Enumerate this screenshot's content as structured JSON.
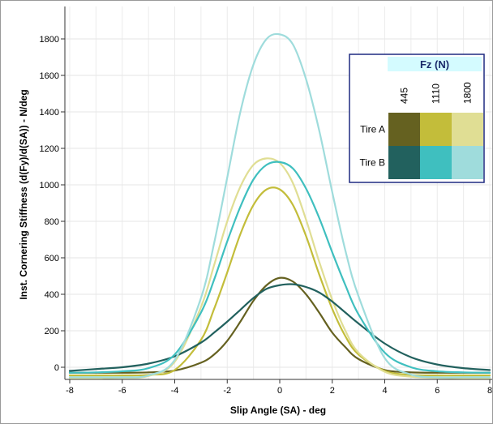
{
  "chart_data": {
    "type": "line",
    "xlabel": "Slip Angle (SA) - deg",
    "ylabel": "Inst. Cornering Stiffness (d(Fy)/d(SA)) - N/deg",
    "xlim": [
      -8,
      8
    ],
    "ylim": [
      -70,
      1880
    ],
    "x_ticks": [
      -8,
      -6,
      -4,
      -2,
      0,
      2,
      4,
      6,
      8
    ],
    "y_ticks": [
      0,
      200,
      400,
      600,
      800,
      1000,
      1200,
      1400,
      1600,
      1800
    ],
    "grid": true,
    "x_samples": [
      -8,
      -7,
      -6,
      -5,
      -4,
      -3,
      -2.5,
      -2,
      -1.5,
      -1,
      -0.5,
      0,
      0.5,
      1,
      1.5,
      2,
      2.5,
      3,
      4,
      5,
      6,
      7,
      8
    ],
    "series": [
      {
        "name": "Tire A 445",
        "color": "#656120",
        "x": [
          -8,
          -7,
          -6,
          -5,
          -4,
          -3,
          -2.5,
          -2,
          -1.5,
          -1,
          -0.5,
          0,
          0.5,
          1,
          1.5,
          2,
          2.5,
          3,
          4,
          5,
          6,
          7,
          8
        ],
        "y": [
          -30,
          -30,
          -30,
          -28,
          -18,
          25,
          70,
          145,
          250,
          365,
          450,
          490,
          470,
          400,
          300,
          190,
          110,
          45,
          -15,
          -28,
          -30,
          -30,
          -30
        ]
      },
      {
        "name": "Tire A 1110",
        "color": "#c3bd3a",
        "x": [
          -8,
          -7,
          -6,
          -5,
          -4,
          -3,
          -2.5,
          -2,
          -1.5,
          -1,
          -0.5,
          0,
          0.5,
          1,
          1.5,
          2,
          2.5,
          3,
          4,
          5,
          6,
          7,
          8
        ],
        "y": [
          -45,
          -45,
          -45,
          -42,
          -15,
          150,
          320,
          520,
          730,
          890,
          975,
          975,
          890,
          720,
          510,
          320,
          170,
          70,
          -20,
          -42,
          -45,
          -45,
          -45
        ]
      },
      {
        "name": "Tire A 1800",
        "color": "#e0de94",
        "x": [
          -8,
          -7,
          -6,
          -5,
          -4,
          -3,
          -2.5,
          -2,
          -1.5,
          -1,
          -0.5,
          0,
          0.5,
          1,
          1.5,
          2,
          2.5,
          3,
          4,
          5,
          6,
          7,
          8
        ],
        "y": [
          -60,
          -60,
          -58,
          -48,
          30,
          330,
          560,
          800,
          990,
          1110,
          1145,
          1120,
          1010,
          810,
          580,
          370,
          200,
          80,
          -25,
          -52,
          -58,
          -60,
          -60
        ]
      },
      {
        "name": "Tire B 445",
        "color": "#22615e",
        "x": [
          -8,
          -7,
          -6,
          -5,
          -4,
          -3,
          -2.5,
          -2,
          -1.5,
          -1,
          -0.5,
          0,
          0.5,
          1,
          1.5,
          2,
          2.5,
          3,
          4,
          5,
          6,
          7,
          8
        ],
        "y": [
          -20,
          -10,
          0,
          20,
          60,
          135,
          190,
          250,
          315,
          380,
          430,
          450,
          455,
          440,
          410,
          360,
          300,
          240,
          130,
          55,
          15,
          -5,
          -15
        ]
      },
      {
        "name": "Tire B 1110",
        "color": "#3fbfbf",
        "x": [
          -8,
          -7,
          -6,
          -5,
          -4,
          -3,
          -2.5,
          -2,
          -1.5,
          -1,
          -0.5,
          0,
          0.5,
          1,
          1.5,
          2,
          2.5,
          3,
          4,
          5,
          6,
          7,
          8
        ],
        "y": [
          -30,
          -28,
          -22,
          -5,
          70,
          300,
          480,
          690,
          880,
          1030,
          1110,
          1125,
          1090,
          980,
          820,
          630,
          450,
          290,
          80,
          0,
          -22,
          -28,
          -30
        ]
      },
      {
        "name": "Tire B 1800",
        "color": "#9fdcdc",
        "x": [
          -8,
          -7,
          -6,
          -5,
          -4,
          -3,
          -2.5,
          -2,
          -1.5,
          -1,
          -0.5,
          0,
          0.5,
          1,
          1.5,
          2,
          2.5,
          3,
          4,
          5,
          6,
          7,
          8
        ],
        "y": [
          -55,
          -55,
          -55,
          -45,
          40,
          380,
          680,
          1040,
          1400,
          1660,
          1800,
          1825,
          1770,
          1580,
          1300,
          960,
          640,
          390,
          50,
          -40,
          -55,
          -55,
          -55
        ]
      }
    ],
    "legend": {
      "placement": "top-right",
      "title": "Fz (N)",
      "columns": [
        "445",
        "1110",
        "1800"
      ],
      "rows": [
        {
          "label": "Tire A",
          "colors": [
            "#656120",
            "#c3bd3a",
            "#e0de94"
          ]
        },
        {
          "label": "Tire B",
          "colors": [
            "#22615e",
            "#3fbfbf",
            "#9fdcdc"
          ]
        }
      ]
    }
  }
}
